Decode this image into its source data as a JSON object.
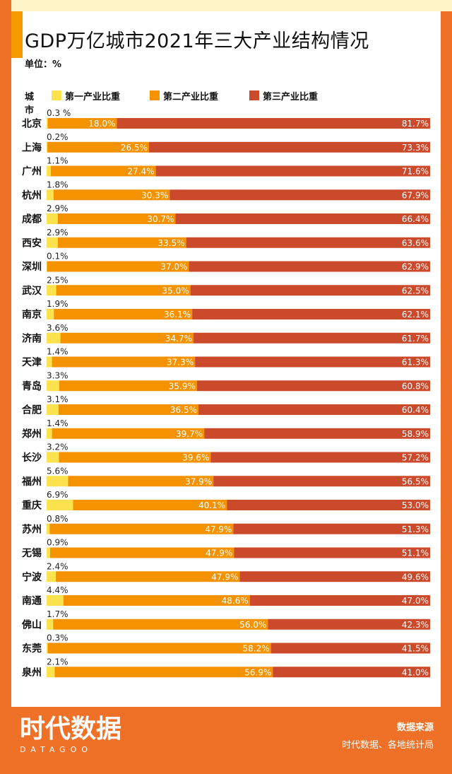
{
  "title": "GDP万亿城市2021年三大产业结构情况",
  "unit_label": "单位：%",
  "legend": {
    "city_label": "城市",
    "primary": "第一产业比重",
    "secondary": "第二产业比重",
    "tertiary": "第三产业比重"
  },
  "colors": {
    "primary": "#fbe24e",
    "secondary": "#f59200",
    "tertiary": "#cc4a2c",
    "frame": "#ef7128"
  },
  "footer": {
    "logo_cn": "时代数据",
    "logo_en": "DATAGOO",
    "source_title": "数据来源",
    "source_value": "时代数据、各地统计局"
  },
  "chart_data": {
    "type": "bar",
    "orientation": "horizontal-stacked",
    "title": "GDP万亿城市2021年三大产业结构情况",
    "xlabel": "",
    "ylabel": "城市",
    "unit": "%",
    "categories": [
      "北京",
      "上海",
      "广州",
      "杭州",
      "成都",
      "西安",
      "深圳",
      "武汉",
      "南京",
      "济南",
      "天津",
      "青岛",
      "合肥",
      "郑州",
      "长沙",
      "福州",
      "重庆",
      "苏州",
      "无锡",
      "宁波",
      "南通",
      "佛山",
      "东莞",
      "泉州"
    ],
    "series": [
      {
        "name": "第一产业比重",
        "values": [
          0.3,
          0.2,
          1.1,
          1.8,
          2.9,
          2.9,
          0.1,
          2.5,
          1.9,
          3.6,
          1.4,
          3.3,
          3.1,
          1.4,
          3.2,
          5.6,
          6.9,
          0.8,
          0.9,
          2.4,
          4.4,
          1.7,
          0.3,
          2.1
        ]
      },
      {
        "name": "第二产业比重",
        "values": [
          18.0,
          26.5,
          27.4,
          30.3,
          30.7,
          33.5,
          37.0,
          35.0,
          36.1,
          34.7,
          37.3,
          35.9,
          36.5,
          39.7,
          39.6,
          37.9,
          40.1,
          47.9,
          47.9,
          47.9,
          48.6,
          56.0,
          58.2,
          56.9
        ]
      },
      {
        "name": "第三产业比重",
        "values": [
          81.7,
          73.3,
          71.6,
          67.9,
          66.4,
          63.6,
          62.9,
          62.5,
          62.1,
          61.7,
          61.3,
          60.8,
          60.4,
          58.9,
          57.2,
          56.5,
          53.0,
          51.3,
          51.1,
          49.6,
          47.0,
          42.3,
          41.5,
          41.0
        ]
      }
    ],
    "primary_labels": [
      "0.3 %",
      "0.2%",
      "1.1%",
      "1.8%",
      "2.9%",
      "2.9%",
      "0.1%",
      "2.5%",
      "1.9%",
      "3.6%",
      "1.4%",
      "3.3%",
      "3.1%",
      "1.4%",
      "3.2%",
      "5.6%",
      "6.9%",
      "0.8%",
      "0.9%",
      "2.4%",
      "4.4%",
      "1.7%",
      "0.3%",
      "2.1%"
    ],
    "secondary_labels": [
      "18.0%",
      "26.5%",
      "27.4%",
      "30.3%",
      "30.7%",
      "33.5%",
      "37.0%",
      "35.0%",
      "36.1%",
      "34.7%",
      "37.3%",
      "35.9%",
      "36.5%",
      "39.7%",
      "39.6%",
      "37.9%",
      "40.1%",
      "47.9%",
      "47.9%",
      "47.9%",
      "48.6%",
      "56.0%",
      "58.2%",
      "56.9%"
    ],
    "tertiary_labels": [
      "81.7%",
      "73.3%",
      "71.6%",
      "67.9%",
      "66.4%",
      "63.6%",
      "62.9%",
      "62.5%",
      "62.1%",
      "61.7%",
      "61.3%",
      "60.8%",
      "60.4%",
      "58.9%",
      "57.2%",
      "56.5%",
      "53.0%",
      "51.3%",
      "51.1%",
      "49.6%",
      "47.0%",
      "42.3%",
      "41.5%",
      "41.0%"
    ],
    "xlim": [
      0,
      100
    ],
    "legend_position": "top-left"
  }
}
